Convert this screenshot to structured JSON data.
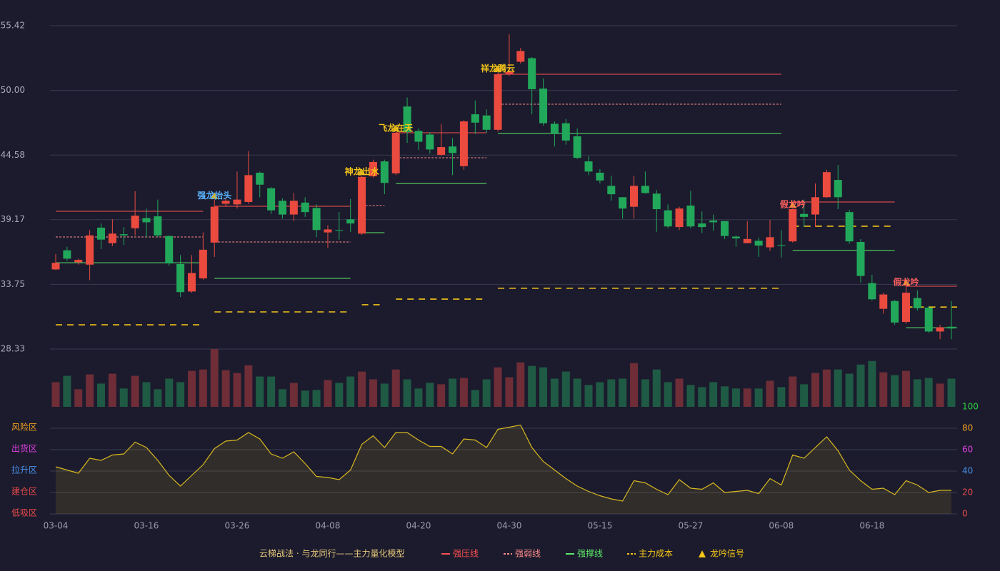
{
  "chart_data": [
    {
      "type": "candlestick",
      "title": "云梯战法 · 与龙同行——主力量化模型",
      "categories": [
        "03-04",
        null,
        null,
        null,
        null,
        null,
        null,
        null,
        "03-16",
        null,
        null,
        null,
        null,
        null,
        null,
        null,
        "03-26",
        null,
        null,
        null,
        null,
        null,
        null,
        null,
        "04-08",
        null,
        null,
        null,
        null,
        null,
        null,
        null,
        "04-20",
        null,
        null,
        null,
        null,
        null,
        null,
        null,
        "04-30",
        null,
        null,
        null,
        null,
        null,
        null,
        null,
        "05-15",
        null,
        null,
        null,
        null,
        null,
        null,
        null,
        "05-27",
        null,
        null,
        null,
        null,
        null,
        null,
        null,
        "06-08",
        null,
        null,
        null,
        null,
        null,
        null,
        null,
        "06-18",
        null,
        null,
        null,
        null,
        null,
        null,
        null
      ],
      "open": [
        35.0,
        36.6,
        35.6,
        35.4,
        38.5,
        37.2,
        37.95,
        38.45,
        39.3,
        39.45,
        37.8,
        35.45,
        33.15,
        34.25,
        37.25,
        40.5,
        40.45,
        40.65,
        43.1,
        41.8,
        40.75,
        39.6,
        40.6,
        40.15,
        38.1,
        38.3,
        39.2,
        38.0,
        42.8,
        44.05,
        43.05,
        48.65,
        46.6,
        46.3,
        44.6,
        45.3,
        43.65,
        48.0,
        47.9,
        46.7,
        51.35,
        52.4,
        52.7,
        50.15,
        47.2,
        47.25,
        46.15,
        44.05,
        43.1,
        42.0,
        41.05,
        40.25,
        42.0,
        41.35,
        39.95,
        38.55,
        40.35,
        38.85,
        39.1,
        39.05,
        37.75,
        37.2,
        37.4,
        36.85,
        37.05,
        37.35,
        39.65,
        39.6,
        41.05,
        42.5,
        39.8,
        37.3,
        33.85,
        31.7,
        32.35,
        30.6,
        32.6,
        31.8,
        29.8,
        30.2
      ],
      "close": [
        35.55,
        35.9,
        35.8,
        37.85,
        37.5,
        38.0,
        37.85,
        39.5,
        38.95,
        37.85,
        35.5,
        33.1,
        34.7,
        36.65,
        40.25,
        40.75,
        40.85,
        42.9,
        42.1,
        39.95,
        39.6,
        40.75,
        39.8,
        38.3,
        38.35,
        38.25,
        38.85,
        42.75,
        44.0,
        42.25,
        46.45,
        46.5,
        45.7,
        45.05,
        45.25,
        44.75,
        47.4,
        47.3,
        46.7,
        51.35,
        51.55,
        53.3,
        50.1,
        47.25,
        46.4,
        45.8,
        44.35,
        43.2,
        42.45,
        41.3,
        40.1,
        42.0,
        41.4,
        40.05,
        38.6,
        40.1,
        38.6,
        38.55,
        38.95,
        37.8,
        37.6,
        37.55,
        37.0,
        37.7,
        37.0,
        40.05,
        39.4,
        41.05,
        43.15,
        41.05,
        37.35,
        34.45,
        32.5,
        32.9,
        30.55,
        33.05,
        31.75,
        29.8,
        30.15,
        30.05
      ],
      "high": [
        36.3,
        36.9,
        35.9,
        38.3,
        38.85,
        39.2,
        38.55,
        41.55,
        40.1,
        40.85,
        37.85,
        36.2,
        36.2,
        38.1,
        40.85,
        40.9,
        43.2,
        44.9,
        43.2,
        41.9,
        40.95,
        41.4,
        41.05,
        40.45,
        38.7,
        39.8,
        40.9,
        42.85,
        44.2,
        44.2,
        46.5,
        49.4,
        46.8,
        46.5,
        47.2,
        46.0,
        47.5,
        49.15,
        48.4,
        51.5,
        54.7,
        53.55,
        52.8,
        51.0,
        47.4,
        47.6,
        46.8,
        44.5,
        43.4,
        42.85,
        41.05,
        42.85,
        43.2,
        41.65,
        40.45,
        40.25,
        41.6,
        39.85,
        39.6,
        39.05,
        37.85,
        39.05,
        37.65,
        39.15,
        38.3,
        40.1,
        40.85,
        42.2,
        43.35,
        43.75,
        40.0,
        37.55,
        34.55,
        33.05,
        32.45,
        33.6,
        33.25,
        31.95,
        30.35,
        32.35
      ],
      "low": [
        34.95,
        35.7,
        35.4,
        34.1,
        36.7,
        36.95,
        37.05,
        37.85,
        37.7,
        37.7,
        35.3,
        32.7,
        33.05,
        34.15,
        36.05,
        40.25,
        40.1,
        40.5,
        41.05,
        39.65,
        39.25,
        39.05,
        39.4,
        37.7,
        36.8,
        37.5,
        38.15,
        37.9,
        42.7,
        41.3,
        42.9,
        45.6,
        45.0,
        44.7,
        44.5,
        42.9,
        43.35,
        46.35,
        46.45,
        46.55,
        51.2,
        52.25,
        48.0,
        47.05,
        45.3,
        45.45,
        44.25,
        42.9,
        42.2,
        40.75,
        39.25,
        39.25,
        41.35,
        38.15,
        38.45,
        38.3,
        38.45,
        38.05,
        38.25,
        37.55,
        36.9,
        37.2,
        36.05,
        36.55,
        36.0,
        37.25,
        38.55,
        38.55,
        41.0,
        40.05,
        37.15,
        33.9,
        32.4,
        31.3,
        30.35,
        30.45,
        31.55,
        29.7,
        29.15,
        29.15
      ],
      "up_color": "#eb4a3f",
      "down_color": "#22a85a",
      "ylim": [
        28.33,
        55.42
      ],
      "yticks": [
        28.33,
        33.75,
        39.17,
        44.58,
        {
          "value": 50,
          "label": "50.00"
        },
        55.42
      ],
      "grid": true,
      "legend": [
        {
          "name": "强压线",
          "color": "#ff5050",
          "style": "solid"
        },
        {
          "name": "强弱线",
          "color": "#ff8a8a",
          "style": "dotted"
        },
        {
          "name": "强撑线",
          "color": "#5ee86a",
          "style": "solid"
        },
        {
          "name": "主力成本",
          "color": "#f5c518",
          "style": "dashed"
        },
        {
          "name": "龙吟信号",
          "color": "#f5c518",
          "style": "triangle"
        }
      ],
      "segments": [
        {
          "start": 0,
          "end": 13,
          "levels": [
            39.87,
            37.72,
            35.56,
            30.36
          ]
        },
        {
          "start": 14,
          "end": 26,
          "levels": [
            40.29,
            37.3,
            34.25,
            31.44
          ]
        },
        {
          "start": 27,
          "end": 29,
          "levels": [
            null,
            40.35,
            38.08,
            32.04
          ]
        },
        {
          "start": 30,
          "end": 38,
          "levels": [
            46.45,
            44.36,
            42.2,
            32.51
          ]
        },
        {
          "start": 39,
          "end": 64,
          "levels": [
            51.35,
            48.84,
            46.39,
            33.42
          ]
        },
        {
          "start": 65,
          "end": 74,
          "levels": [
            40.65,
            null,
            36.59,
            38.62
          ]
        },
        {
          "start": 75,
          "end": 79,
          "levels": [
            33.59,
            null,
            30.12,
            31.85
          ]
        }
      ],
      "signals": [
        {
          "index": 14,
          "label": "强龙抬头",
          "color": "#5ab4ff"
        },
        {
          "index": 27,
          "label": "神龙出水",
          "color": "#f5c518"
        },
        {
          "index": 30,
          "label": "飞龙在天",
          "color": "#f5c518"
        },
        {
          "index": 39,
          "label": "祥龙腾云",
          "color": "#f5c518"
        },
        {
          "index": 65,
          "label": "假龙吟",
          "color": "#ff6060"
        },
        {
          "index": 75,
          "label": "假龙吟",
          "color": "#ff6060"
        }
      ]
    },
    {
      "type": "bar",
      "values": [
        35,
        44,
        25,
        46,
        33,
        47,
        26,
        44,
        35,
        25,
        40,
        35,
        51,
        53,
        82,
        52,
        48,
        59,
        43,
        43,
        25,
        34,
        23,
        24,
        38,
        34,
        43,
        50,
        39,
        33,
        53,
        39,
        26,
        34,
        32,
        40,
        41,
        24,
        39,
        56,
        42,
        63,
        58,
        56,
        40,
        50,
        40,
        31,
        35,
        39,
        40,
        62,
        39,
        53,
        35,
        40,
        31,
        28,
        35,
        29,
        26,
        26,
        26,
        37,
        28,
        43,
        32,
        48,
        53,
        53,
        47,
        60,
        65,
        49,
        45,
        51,
        39,
        41,
        33,
        40
      ],
      "up_color": "#6e2d37",
      "down_color": "#1f5a44"
    },
    {
      "type": "area",
      "color": "#d8b820",
      "values": [
        44,
        41,
        38,
        52,
        50,
        55,
        56,
        67,
        62,
        50,
        36,
        26,
        36,
        46,
        61,
        68,
        69,
        76,
        70,
        56,
        52,
        58,
        47,
        35,
        34,
        32,
        41,
        65,
        73,
        62,
        76,
        76,
        69,
        63,
        63,
        56,
        70,
        69,
        62,
        79,
        81,
        83,
        62,
        49,
        41,
        33,
        26,
        21,
        17,
        14,
        12,
        31,
        29,
        23,
        18,
        32,
        24,
        23,
        29,
        20,
        21,
        22,
        19,
        33,
        27,
        55,
        52,
        62,
        72,
        59,
        41,
        31,
        23,
        24,
        18,
        31,
        27,
        20,
        22,
        22
      ],
      "ylim": [
        0,
        100
      ],
      "yticks": [
        0,
        20,
        40,
        60,
        80,
        100
      ],
      "ytick_colors": [
        "#e84a4a",
        "#e84a4a",
        "#4a8fe8",
        "#e040e0",
        "#f0a020",
        "#2ecc40"
      ],
      "zones": [
        {
          "value": 80,
          "label": "风险区",
          "color": "#f0a020"
        },
        {
          "value": 60,
          "label": "出货区",
          "color": "#e040e0"
        },
        {
          "value": 40,
          "label": "拉升区",
          "color": "#4a8fe8"
        },
        {
          "value": 20,
          "label": "建仓区",
          "color": "#e84a4a"
        },
        {
          "value": 0,
          "label": "低吸区",
          "color": "#e84a4a"
        }
      ]
    }
  ]
}
